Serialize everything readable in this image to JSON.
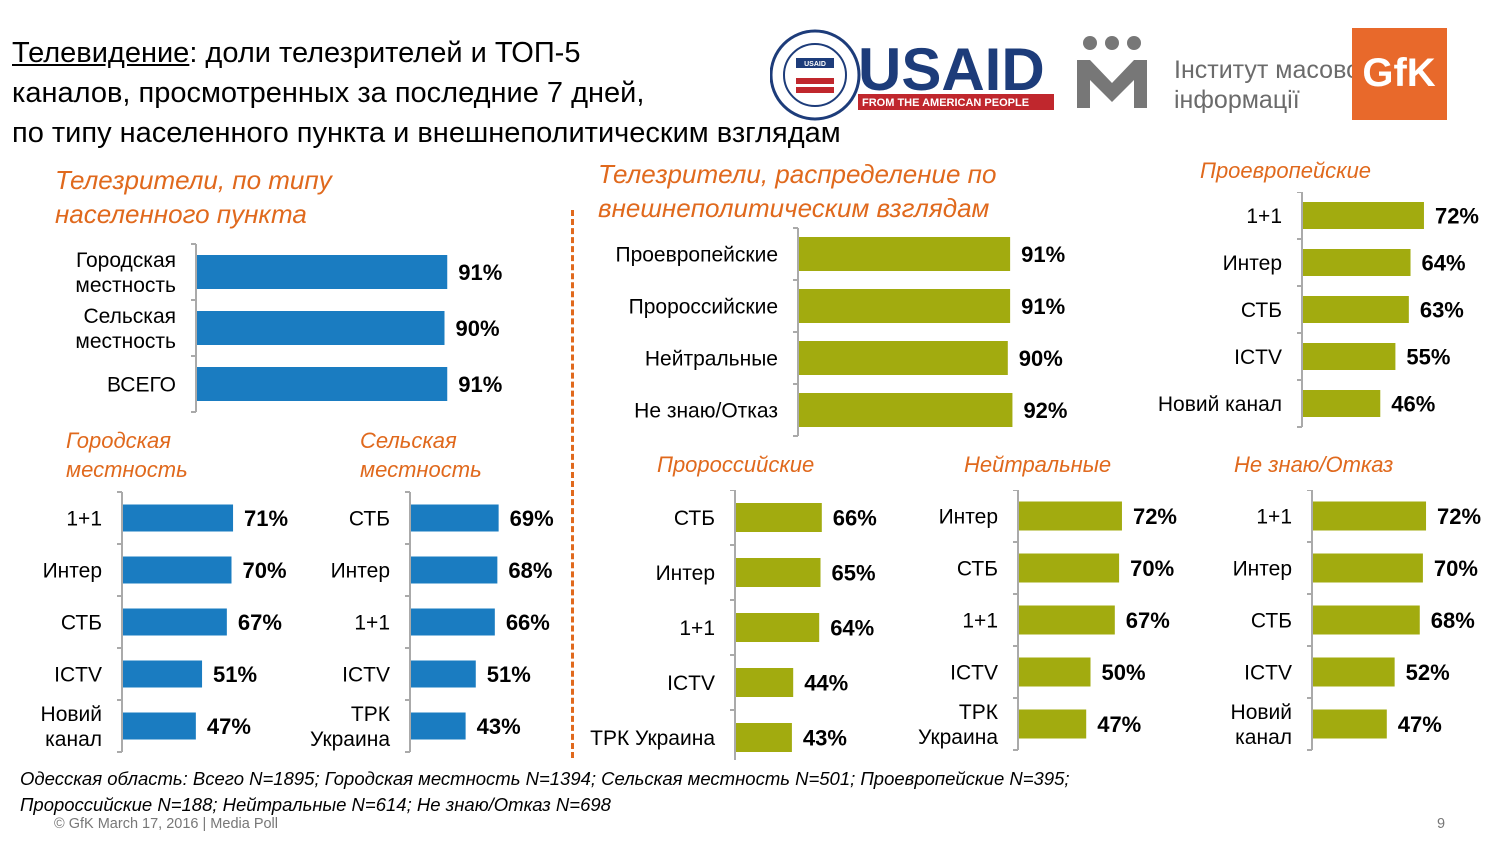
{
  "title": {
    "underlined": "Телевидение",
    "line1_rest": ": доли телезрителей и ТОП-5",
    "line2": "каналов, просмотренных за последние 7 дней,",
    "line3": "по типу населенного пункта и внешнеполитическим взглядам"
  },
  "logos": {
    "usaid_text": "USAID",
    "usaid_tagline": "FROM THE AMERICAN PEOPLE",
    "usaid_seal_text": "UNITED STATES AGENCY INTERNATIONAL DEVELOPMENT",
    "usaid_seal_center": "USAID",
    "imi_line1": "Інститут масової",
    "imi_line2": "інформації",
    "gfk_text": "GfK"
  },
  "colors": {
    "blue": "#1a7cc1",
    "olive": "#a2ab0f",
    "orange": "#e0691d"
  },
  "headings": {
    "settlement": "Телезрители, по типу населенного пункта",
    "politics": "Телезрители, распределение по внешнеполитическим взглядам"
  },
  "chart_data": [
    {
      "id": "settlement",
      "type": "bar",
      "orientation": "horizontal",
      "color": "#1a7cc1",
      "xlim": [
        0,
        100
      ],
      "categories": [
        "Городская местность",
        "Сельская местность",
        "ВСЕГО"
      ],
      "values": [
        91,
        90,
        91
      ],
      "labels": [
        "91%",
        "90%",
        "91%"
      ]
    },
    {
      "id": "urban",
      "title": "Городская местность",
      "type": "bar",
      "orientation": "horizontal",
      "color": "#1a7cc1",
      "xlim": [
        0,
        100
      ],
      "categories": [
        "1+1",
        "Интер",
        "СТБ",
        "ICTV",
        "Новий канал"
      ],
      "values": [
        71,
        70,
        67,
        51,
        47
      ],
      "labels": [
        "71%",
        "70%",
        "67%",
        "51%",
        "47%"
      ]
    },
    {
      "id": "rural",
      "title": "Сельская местность",
      "type": "bar",
      "orientation": "horizontal",
      "color": "#1a7cc1",
      "xlim": [
        0,
        100
      ],
      "categories": [
        "СТБ",
        "Интер",
        "1+1",
        "ICTV",
        "ТРК Украина"
      ],
      "values": [
        69,
        68,
        66,
        51,
        43
      ],
      "labels": [
        "69%",
        "68%",
        "66%",
        "51%",
        "43%"
      ]
    },
    {
      "id": "politics",
      "type": "bar",
      "orientation": "horizontal",
      "color": "#a2ab0f",
      "xlim": [
        0,
        100
      ],
      "categories": [
        "Проевропейские",
        "Пророссийские",
        "Нейтральные",
        "Не знаю/Отказ"
      ],
      "values": [
        91,
        91,
        90,
        92
      ],
      "labels": [
        "91%",
        "91%",
        "90%",
        "92%"
      ]
    },
    {
      "id": "pro_eu",
      "title": "Проевропейские",
      "type": "bar",
      "orientation": "horizontal",
      "color": "#a2ab0f",
      "xlim": [
        0,
        100
      ],
      "categories": [
        "1+1",
        "Интер",
        "СТБ",
        "ICTV",
        "Новий канал"
      ],
      "values": [
        72,
        64,
        63,
        55,
        46
      ],
      "labels": [
        "72%",
        "64%",
        "63%",
        "55%",
        "46%"
      ]
    },
    {
      "id": "pro_ru",
      "title": "Пророссийские",
      "type": "bar",
      "orientation": "horizontal",
      "color": "#a2ab0f",
      "xlim": [
        0,
        100
      ],
      "categories": [
        "СТБ",
        "Интер",
        "1+1",
        "ICTV",
        "ТРК Украина"
      ],
      "values": [
        66,
        65,
        64,
        44,
        43
      ],
      "labels": [
        "66%",
        "65%",
        "64%",
        "44%",
        "43%"
      ]
    },
    {
      "id": "neutral",
      "title": "Нейтральные",
      "type": "bar",
      "orientation": "horizontal",
      "color": "#a2ab0f",
      "xlim": [
        0,
        100
      ],
      "categories": [
        "Интер",
        "СТБ",
        "1+1",
        "ICTV",
        "ТРК Украина"
      ],
      "values": [
        72,
        70,
        67,
        50,
        47
      ],
      "labels": [
        "72%",
        "70%",
        "67%",
        "50%",
        "47%"
      ]
    },
    {
      "id": "dont_know",
      "title": "Не знаю/Отказ",
      "type": "bar",
      "orientation": "horizontal",
      "color": "#a2ab0f",
      "xlim": [
        0,
        100
      ],
      "categories": [
        "1+1",
        "Интер",
        "СТБ",
        "ICTV",
        "Новий канал"
      ],
      "values": [
        72,
        70,
        68,
        52,
        47
      ],
      "labels": [
        "72%",
        "70%",
        "68%",
        "52%",
        "47%"
      ]
    }
  ],
  "footnote": {
    "line1": "Одесская область: Всего N=1895; Городская местность N=1394; Сельская местность N=501; Проевропейские N=395;",
    "line2": "Пророссийские N=188; Нейтральные N=614; Не знаю/Отказ N=698"
  },
  "footer": "© GfK March 17, 2016 | Media Poll",
  "page_number": "9"
}
